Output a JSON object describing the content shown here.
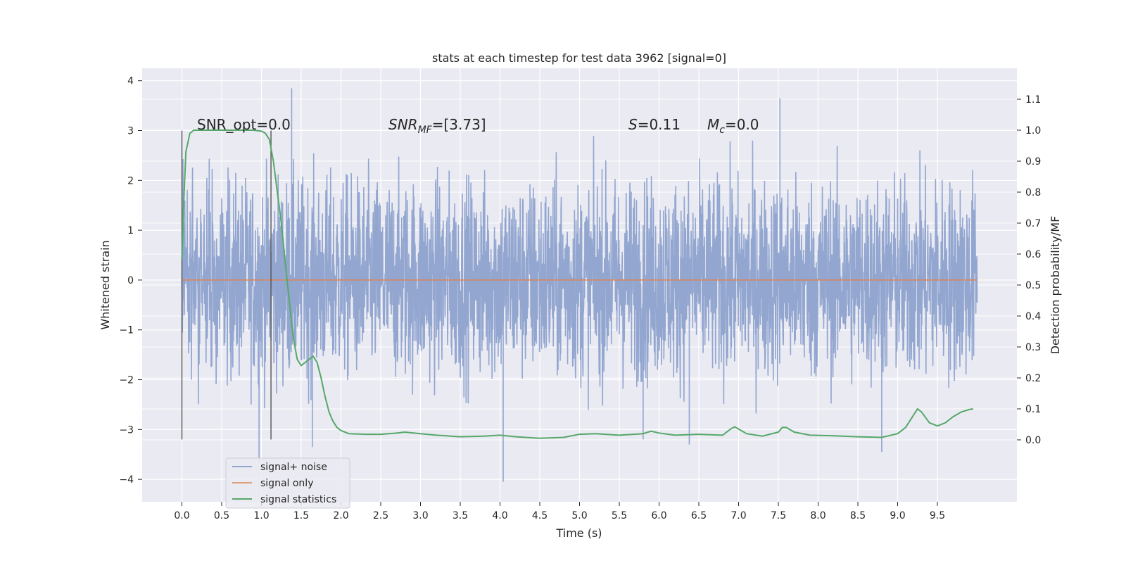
{
  "chart_data": {
    "type": "line",
    "title": "stats at each timestep for test data 3962 [signal=0]",
    "xlabel": "Time (s)",
    "ylabel": "Whitened strain",
    "ylabel_right": "Detection probability/MF",
    "xlim": [
      -0.5,
      10.5
    ],
    "ylim": [
      -4.45,
      4.25
    ],
    "ylim_right": [
      -0.2,
      1.2
    ],
    "x_ticks": [
      "0.0",
      "0.5",
      "1.0",
      "1.5",
      "2.0",
      "2.5",
      "3.0",
      "3.5",
      "4.0",
      "4.5",
      "5.0",
      "5.5",
      "6.0",
      "6.5",
      "7.0",
      "7.5",
      "8.0",
      "8.5",
      "9.0",
      "9.5"
    ],
    "y_ticks": [
      "4",
      "3",
      "2",
      "1",
      "0",
      "−1",
      "−2",
      "−3",
      "−4"
    ],
    "y_ticks_right": [
      "1.1",
      "1.0",
      "0.9",
      "0.8",
      "0.7",
      "0.6",
      "0.5",
      "0.4",
      "0.3",
      "0.2",
      "0.1",
      "0.0"
    ],
    "grid": true,
    "legend_placement": "lower-left",
    "legend": [
      "signal+ noise",
      "signal only",
      "signal statistics"
    ],
    "annotations": {
      "snr_opt": "SNR_opt=0.0",
      "snr_mf_base": "SNR",
      "snr_mf_sub": "MF",
      "snr_mf_value": "=[3.73]",
      "s_symbol": "S",
      "s_value": "=0.11",
      "mc_base": "M",
      "mc_sub": "c",
      "mc_value": "=0.0"
    },
    "vertical_lines_x": [
      0.0,
      1.12
    ],
    "series": [
      {
        "name": "signal+ noise",
        "color": "#92a6d0",
        "x_range": [
          0.0,
          10.0
        ],
        "typical_range": [
          -1.5,
          1.5
        ],
        "extremes": [
          [
            1.38,
            3.85
          ],
          [
            7.52,
            3.65
          ],
          [
            4.04,
            -4.05
          ],
          [
            0.97,
            -3.65
          ],
          [
            6.38,
            -3.3
          ],
          [
            8.8,
            -3.45
          ],
          [
            1.64,
            -3.35
          ],
          [
            5.8,
            -3.2
          ]
        ]
      },
      {
        "name": "signal only",
        "color": "#dd8452",
        "x": [
          0.0,
          10.0
        ],
        "values": [
          0.0,
          0.0
        ]
      },
      {
        "name": "signal statistics",
        "color": "#55a868",
        "axis": "right",
        "x": [
          0.0,
          0.02,
          0.05,
          0.1,
          0.15,
          0.2,
          0.3,
          0.5,
          0.7,
          0.9,
          1.0,
          1.05,
          1.1,
          1.15,
          1.2,
          1.25,
          1.3,
          1.35,
          1.4,
          1.45,
          1.5,
          1.55,
          1.6,
          1.65,
          1.7,
          1.75,
          1.8,
          1.85,
          1.9,
          1.95,
          2.0,
          2.1,
          2.3,
          2.5,
          2.7,
          2.8,
          3.0,
          3.2,
          3.5,
          3.8,
          4.0,
          4.2,
          4.5,
          4.8,
          5.0,
          5.2,
          5.5,
          5.8,
          5.9,
          6.0,
          6.2,
          6.5,
          6.8,
          6.9,
          6.95,
          7.0,
          7.1,
          7.3,
          7.5,
          7.55,
          7.6,
          7.7,
          7.9,
          8.2,
          8.5,
          8.8,
          9.0,
          9.1,
          9.2,
          9.25,
          9.3,
          9.4,
          9.5,
          9.6,
          9.7,
          9.8,
          9.9,
          9.95
        ],
        "values": [
          0.58,
          0.75,
          0.93,
          0.99,
          1.0,
          1.0,
          1.0,
          1.0,
          1.0,
          1.0,
          0.997,
          0.99,
          0.97,
          0.9,
          0.8,
          0.7,
          0.57,
          0.45,
          0.33,
          0.26,
          0.24,
          0.25,
          0.26,
          0.27,
          0.25,
          0.2,
          0.14,
          0.09,
          0.06,
          0.04,
          0.03,
          0.02,
          0.018,
          0.018,
          0.022,
          0.025,
          0.02,
          0.015,
          0.01,
          0.012,
          0.015,
          0.01,
          0.005,
          0.008,
          0.018,
          0.02,
          0.015,
          0.02,
          0.028,
          0.022,
          0.015,
          0.018,
          0.015,
          0.035,
          0.042,
          0.035,
          0.02,
          0.012,
          0.025,
          0.04,
          0.04,
          0.025,
          0.015,
          0.013,
          0.01,
          0.008,
          0.02,
          0.04,
          0.08,
          0.1,
          0.09,
          0.055,
          0.045,
          0.055,
          0.075,
          0.09,
          0.098,
          0.1
        ]
      }
    ]
  }
}
